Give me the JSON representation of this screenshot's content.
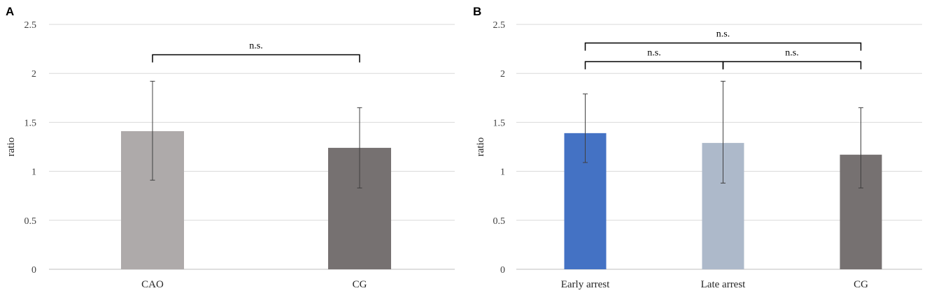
{
  "chart_data": [
    {
      "panel_label": "A",
      "type": "bar",
      "ylabel": "ratio",
      "ylim": [
        0,
        2.5
      ],
      "yticks": [
        "0",
        "0.5",
        "1",
        "1.5",
        "2",
        "2.5"
      ],
      "categories": [
        "CAO",
        "CG"
      ],
      "values": [
        1.41,
        1.24
      ],
      "error_low": [
        0.91,
        0.83
      ],
      "error_high": [
        1.92,
        1.65
      ],
      "colors": [
        "#aeaaaa",
        "#767171"
      ],
      "significance": [
        {
          "from": 0,
          "to": 1,
          "label": "n.s.",
          "level": 2.19
        }
      ]
    },
    {
      "panel_label": "B",
      "type": "bar",
      "ylabel": "ratio",
      "ylim": [
        0,
        2.5
      ],
      "yticks": [
        "0",
        "0.5",
        "1",
        "1.5",
        "2",
        "2.5"
      ],
      "categories": [
        "Early arrest",
        "Late arrest",
        "CG"
      ],
      "values": [
        1.39,
        1.29,
        1.17
      ],
      "error_low": [
        1.09,
        0.88,
        0.83
      ],
      "error_high": [
        1.79,
        1.92,
        1.65
      ],
      "colors": [
        "#4472c4",
        "#adb9ca",
        "#767171"
      ],
      "significance": [
        {
          "from": 0,
          "to": 2,
          "label": "n.s.",
          "level": 2.31
        },
        {
          "from": 0,
          "to": 1,
          "label": "n.s.",
          "level": 2.12
        },
        {
          "from": 1,
          "to": 2,
          "label": "n.s.",
          "level": 2.12
        }
      ]
    }
  ]
}
